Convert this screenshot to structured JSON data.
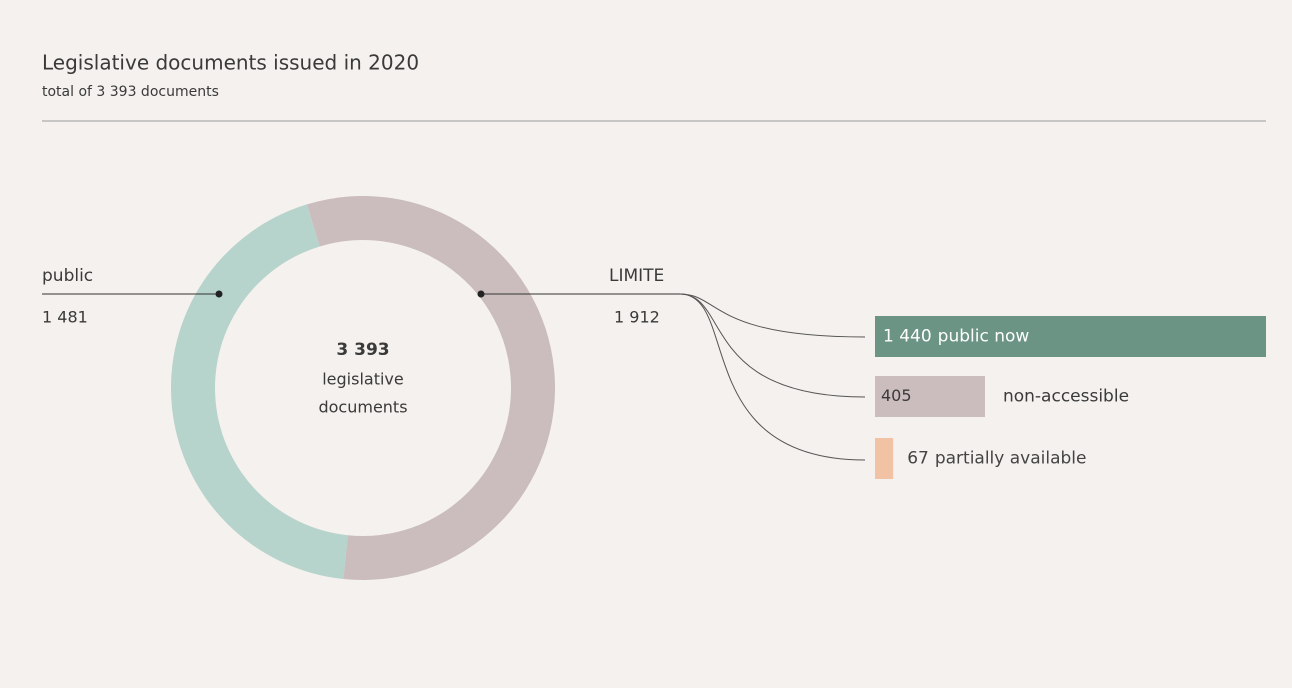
{
  "chart_data": [
    {
      "type": "donut",
      "title": "Legislative documents issued in 2020",
      "subtitle": "total of 3 393 documents",
      "total": 3393,
      "total_label": "3 393",
      "center_label_lines": [
        "legislative",
        "documents"
      ],
      "categories": [
        "public",
        "LIMITE"
      ],
      "values": [
        1481,
        1912
      ],
      "value_labels": [
        "1 481",
        "1 912"
      ],
      "colors": [
        "#b6d3cc",
        "#cbbcbd"
      ]
    },
    {
      "type": "bar",
      "categories": [
        "public now",
        "non-accessible",
        "partially available"
      ],
      "values": [
        1440,
        405,
        67
      ],
      "value_labels": [
        "1 440",
        "405",
        "67"
      ],
      "colors": [
        "#6b9484",
        "#cbbcbd",
        "#f1c3a4"
      ]
    }
  ]
}
